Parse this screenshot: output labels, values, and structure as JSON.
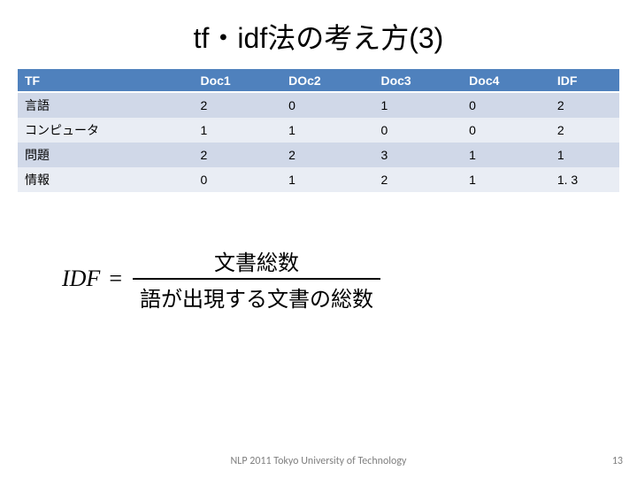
{
  "title": "tf・idf法の考え方(3)",
  "table": {
    "columns": [
      "TF",
      "Doc1",
      "DOc2",
      "Doc3",
      "Doc4",
      "IDF"
    ],
    "rows": [
      [
        "言語",
        "2",
        "0",
        "1",
        "0",
        "2"
      ],
      [
        "コンピュータ",
        "1",
        "1",
        "0",
        "0",
        "2"
      ],
      [
        "問題",
        "2",
        "2",
        "3",
        "1",
        "1"
      ],
      [
        "情報",
        "0",
        "1",
        "2",
        "1",
        "1. 3"
      ]
    ],
    "header_bg": "#4f81bd",
    "header_fg": "#ffffff",
    "row_odd_bg": "#d0d8e8",
    "row_even_bg": "#e9edf4",
    "font_size": 14
  },
  "formula": {
    "lhs": "IDF",
    "eq": "=",
    "numerator": "文書総数",
    "denominator": "語が出現する文書の総数"
  },
  "footer": "NLP 2011   Tokyo University of Technology",
  "page_number": "13"
}
